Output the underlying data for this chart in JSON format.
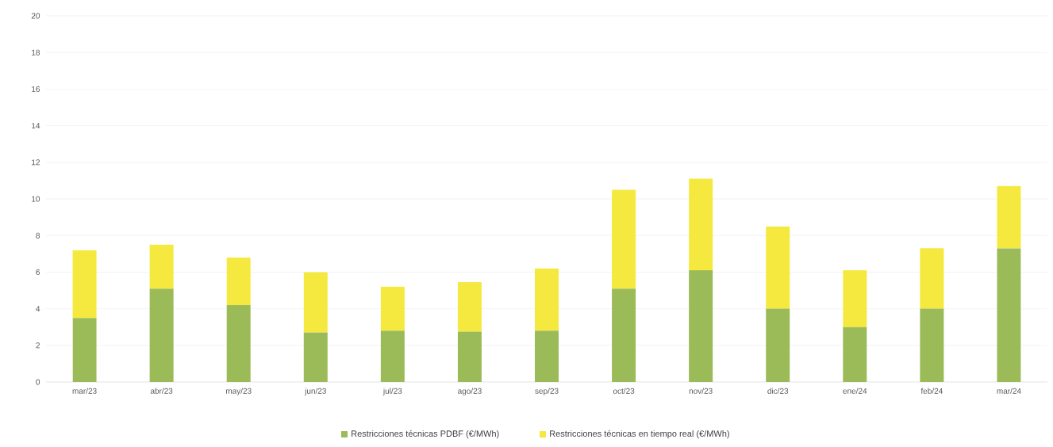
{
  "chart_data": {
    "type": "bar",
    "stacked": true,
    "categories": [
      "mar/23",
      "abr/23",
      "may/23",
      "jun/23",
      "jul/23",
      "ago/23",
      "sep/23",
      "oct/23",
      "nov/23",
      "dic/23",
      "ene/24",
      "feb/24",
      "mar/24"
    ],
    "series": [
      {
        "name": "Restricciones técnicas PDBF (€/MWh)",
        "color": "#9bbb59",
        "values": [
          3.5,
          5.1,
          4.2,
          2.7,
          2.8,
          2.75,
          2.8,
          5.1,
          6.1,
          4.0,
          3.0,
          4.0,
          7.3
        ]
      },
      {
        "name": "Restricciones técnicas en tiempo real (€/MWh)",
        "color": "#f5e93f",
        "values": [
          3.7,
          2.4,
          2.6,
          3.3,
          2.4,
          2.7,
          3.4,
          5.4,
          5.0,
          4.5,
          3.1,
          3.3,
          3.4
        ]
      }
    ],
    "ylim": [
      0,
      20
    ],
    "yticks": [
      0,
      2,
      4,
      6,
      8,
      10,
      12,
      14,
      16,
      18,
      20
    ],
    "grid": "y",
    "legend": "bottom"
  }
}
